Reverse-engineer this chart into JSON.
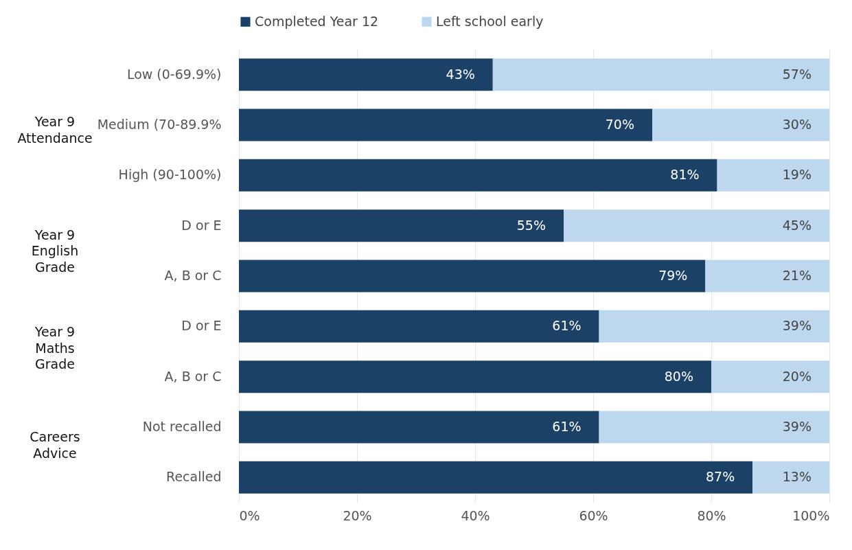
{
  "chart_data": {
    "type": "bar",
    "orientation": "horizontal",
    "stacked": true,
    "categories": [
      "Low (0-69.9%)",
      "Medium (70-89.9%",
      "High (90-100%)",
      "D or E",
      "A, B or C",
      "D or E",
      "A, B or C",
      "Not recalled",
      "Recalled"
    ],
    "series": [
      {
        "name": "Completed Year 12",
        "color": "#1b4266",
        "values": [
          43,
          70,
          81,
          55,
          79,
          61,
          80,
          61,
          87
        ],
        "value_labels": [
          "43%",
          "70%",
          "81%",
          "55%",
          "79%",
          "61%",
          "80%",
          "61%",
          "87%"
        ]
      },
      {
        "name": "Left school early",
        "color": "#bdd7ee",
        "values": [
          57,
          30,
          19,
          45,
          21,
          39,
          20,
          39,
          13
        ],
        "value_labels": [
          "57%",
          "30%",
          "19%",
          "45%",
          "21%",
          "39%",
          "20%",
          "39%",
          "13%"
        ]
      }
    ],
    "xlim": [
      0,
      100
    ],
    "xticks": [
      {
        "value": 0,
        "label": "0%"
      },
      {
        "value": 20,
        "label": "20%"
      },
      {
        "value": 40,
        "label": "40%"
      },
      {
        "value": 60,
        "label": "60%"
      },
      {
        "value": 80,
        "label": "80%"
      },
      {
        "value": 100,
        "label": "100%"
      }
    ],
    "grid": "x",
    "legend": "top",
    "annotations": [
      "Year 9 Attendance",
      "Year 9 English Grade",
      "Year 9 Maths Grade",
      "Careers Advice"
    ]
  }
}
